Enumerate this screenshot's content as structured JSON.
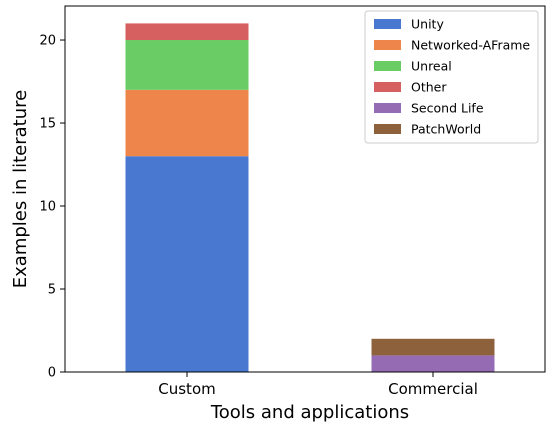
{
  "chart_data": {
    "type": "bar",
    "stacked": true,
    "categories": [
      "Custom",
      "Commercial"
    ],
    "series": [
      {
        "name": "Unity",
        "values": [
          13,
          0
        ],
        "color": "#4878d0"
      },
      {
        "name": "Networked-AFrame",
        "values": [
          4,
          0
        ],
        "color": "#ee854a"
      },
      {
        "name": "Unreal",
        "values": [
          3,
          0
        ],
        "color": "#6acc64"
      },
      {
        "name": "Other",
        "values": [
          1,
          0
        ],
        "color": "#d65f5f"
      },
      {
        "name": "Second Life",
        "values": [
          0,
          1
        ],
        "color": "#956cb4"
      },
      {
        "name": "PatchWorld",
        "values": [
          0,
          1
        ],
        "color": "#8c613c"
      }
    ],
    "xlabel": "Tools and applications",
    "ylabel": "Examples in literature",
    "ylim": [
      0,
      22.05
    ],
    "yticks": [
      0,
      5,
      10,
      15,
      20
    ],
    "grid": false,
    "legend_position": "top-right"
  }
}
